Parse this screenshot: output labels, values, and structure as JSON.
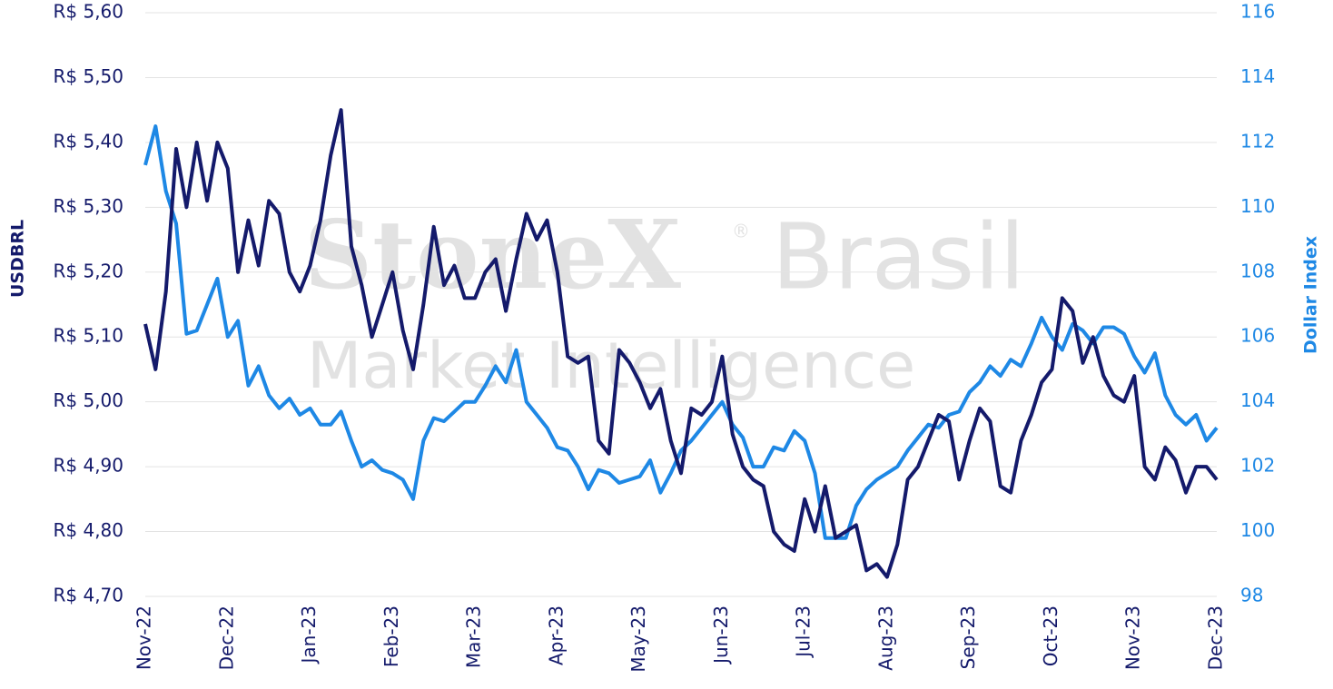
{
  "chart_data": {
    "type": "line",
    "watermark": [
      "StoneX",
      "®",
      "Brasil",
      "Market Intelligence"
    ],
    "y_label": "USDBRL",
    "y2_label": "Dollar Index",
    "categories": [
      "Nov-22",
      null,
      null,
      null,
      null,
      null,
      null,
      null,
      "Dec-22",
      null,
      null,
      null,
      null,
      null,
      null,
      null,
      "Jan-23",
      null,
      null,
      null,
      null,
      null,
      null,
      null,
      "Feb-23",
      null,
      null,
      null,
      null,
      null,
      null,
      null,
      "Mar-23",
      null,
      null,
      null,
      null,
      null,
      null,
      null,
      "Apr-23",
      null,
      null,
      null,
      null,
      null,
      null,
      null,
      "May-23",
      null,
      null,
      null,
      null,
      null,
      null,
      null,
      "Jun-23",
      null,
      null,
      null,
      null,
      null,
      null,
      null,
      "Jul-23",
      null,
      null,
      null,
      null,
      null,
      null,
      null,
      "Aug-23",
      null,
      null,
      null,
      null,
      null,
      null,
      null,
      "Sep-23",
      null,
      null,
      null,
      null,
      null,
      null,
      null,
      "Oct-23",
      null,
      null,
      null,
      null,
      null,
      null,
      null,
      "Nov-23",
      null,
      null,
      null,
      null,
      null,
      null,
      null,
      "Dec-23"
    ],
    "series": [
      {
        "name": "USDBRL",
        "color": "#141a6b",
        "values": [
          5.12,
          5.05,
          5.17,
          5.39,
          5.3,
          5.4,
          5.31,
          5.4,
          5.36,
          5.2,
          5.28,
          5.21,
          5.31,
          5.29,
          5.2,
          5.17,
          5.21,
          5.28,
          5.38,
          5.45,
          5.24,
          5.18,
          5.1,
          5.15,
          5.2,
          5.11,
          5.05,
          5.15,
          5.27,
          5.18,
          5.21,
          5.16,
          5.16,
          5.2,
          5.22,
          5.14,
          5.22,
          5.29,
          5.25,
          5.28,
          5.2,
          5.07,
          5.06,
          5.07,
          4.94,
          4.92,
          5.08,
          5.06,
          5.03,
          4.99,
          5.02,
          4.94,
          4.89,
          4.99,
          4.98,
          5.0,
          5.07,
          4.95,
          4.9,
          4.88,
          4.87,
          4.8,
          4.78,
          4.77,
          4.85,
          4.8,
          4.87,
          4.79,
          4.8,
          4.81,
          4.74,
          4.75,
          4.73,
          4.78,
          4.88,
          4.9,
          4.94,
          4.98,
          4.97,
          4.88,
          4.94,
          4.99,
          4.97,
          4.87,
          4.86,
          4.94,
          4.98,
          5.03,
          5.05,
          5.16,
          5.14,
          5.06,
          5.1,
          5.04,
          5.01,
          5.0,
          5.04,
          4.9,
          4.88,
          4.93,
          4.91,
          4.86,
          4.9,
          4.9,
          4.88
        ]
      },
      {
        "name": "Dollar Index",
        "color": "#1e88e5",
        "axis": "y2",
        "values": [
          111.3,
          112.5,
          110.5,
          109.5,
          106.1,
          106.2,
          107.0,
          107.8,
          106.0,
          106.5,
          104.5,
          105.1,
          104.2,
          103.8,
          104.1,
          103.6,
          103.8,
          103.3,
          103.3,
          103.7,
          102.8,
          102.0,
          102.2,
          101.9,
          101.8,
          101.6,
          101.0,
          102.8,
          103.5,
          103.4,
          103.7,
          104.0,
          104.0,
          104.5,
          105.1,
          104.6,
          105.6,
          104.0,
          103.6,
          103.2,
          102.6,
          102.5,
          102.0,
          101.3,
          101.9,
          101.8,
          101.5,
          101.6,
          101.7,
          102.2,
          101.2,
          101.8,
          102.5,
          102.8,
          103.2,
          103.6,
          104.0,
          103.3,
          102.9,
          102.0,
          102.0,
          102.6,
          102.5,
          103.1,
          102.8,
          101.8,
          99.8,
          99.8,
          99.8,
          100.8,
          101.3,
          101.6,
          101.8,
          102.0,
          102.5,
          102.9,
          103.3,
          103.2,
          103.6,
          103.7,
          104.3,
          104.6,
          105.1,
          104.8,
          105.3,
          105.1,
          105.8,
          106.6,
          106.0,
          105.6,
          106.4,
          106.2,
          105.8,
          106.3,
          106.3,
          106.1,
          105.4,
          104.9,
          105.5,
          104.2,
          103.6,
          103.3,
          103.6,
          102.8,
          103.2
        ]
      }
    ],
    "ylim": [
      4.7,
      5.6
    ],
    "yticks": [
      {
        "value": 4.7,
        "label": "R$ 4,70"
      },
      {
        "value": 4.8,
        "label": "R$ 4,80"
      },
      {
        "value": 4.9,
        "label": "R$ 4,90"
      },
      {
        "value": 5.0,
        "label": "R$ 5,00"
      },
      {
        "value": 5.1,
        "label": "R$ 5,10"
      },
      {
        "value": 5.2,
        "label": "R$ 5,20"
      },
      {
        "value": 5.3,
        "label": "R$ 5,30"
      },
      {
        "value": 5.4,
        "label": "R$ 5,40"
      },
      {
        "value": 5.5,
        "label": "R$ 5,50"
      },
      {
        "value": 5.6,
        "label": "R$ 5,60"
      }
    ],
    "y2lim": [
      98,
      116
    ],
    "y2ticks": [
      98,
      100,
      102,
      104,
      106,
      108,
      110,
      112,
      114,
      116
    ],
    "grid": true
  }
}
